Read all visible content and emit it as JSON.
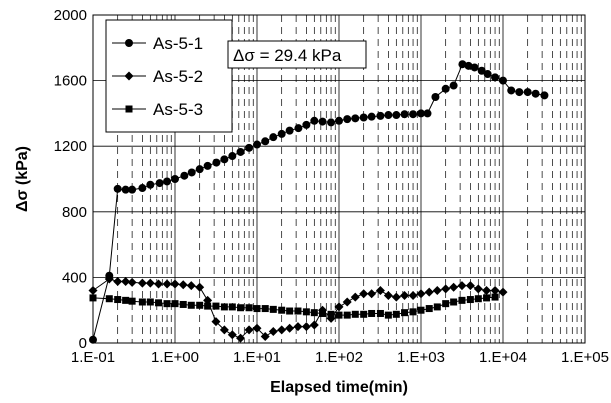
{
  "chart_data": {
    "type": "scatter",
    "title": "",
    "xlabel": "Elapsed time(min)",
    "ylabel": "Δσ (kPa)",
    "x_scale": "log",
    "xlim": [
      0.1,
      100000
    ],
    "ylim": [
      0,
      2000
    ],
    "x_tick_labels": [
      "1.E-01",
      "1.E+00",
      "1.E+01",
      "1.E+02",
      "1.E+03",
      "1.E+04",
      "1.E+05"
    ],
    "y_tick_labels": [
      "0",
      "400",
      "800",
      "1200",
      "1600",
      "2000"
    ],
    "grid": "major horizontal solid, log-minor vertical dashed",
    "legend_position": "top-left",
    "annotation": "Δσ = 29.4 kPa",
    "series": [
      {
        "name": "As-5-1",
        "marker": "circle",
        "x": [
          0.1,
          0.158,
          0.2,
          0.25,
          0.3,
          0.4,
          0.5,
          0.65,
          0.8,
          1.0,
          1.3,
          1.6,
          2.0,
          2.5,
          3.2,
          4.0,
          5.0,
          6.3,
          8.0,
          10,
          12.6,
          15.8,
          20,
          25,
          32,
          40,
          50,
          63,
          80,
          100,
          126,
          158,
          200,
          250,
          320,
          400,
          500,
          630,
          800,
          1000,
          1200,
          1500,
          2000,
          2500,
          3200,
          3800,
          4500,
          5500,
          6500,
          8000,
          10000,
          12600,
          15800,
          20000,
          25000,
          32000
        ],
        "y": [
          20,
          410,
          940,
          935,
          935,
          945,
          965,
          975,
          985,
          1000,
          1020,
          1040,
          1060,
          1080,
          1100,
          1120,
          1140,
          1165,
          1190,
          1210,
          1230,
          1255,
          1275,
          1295,
          1310,
          1330,
          1355,
          1350,
          1345,
          1355,
          1365,
          1370,
          1375,
          1380,
          1385,
          1390,
          1390,
          1395,
          1395,
          1400,
          1400,
          1500,
          1550,
          1570,
          1700,
          1690,
          1680,
          1660,
          1640,
          1620,
          1600,
          1540,
          1530,
          1530,
          1520,
          1510
        ]
      },
      {
        "name": "As-5-2",
        "marker": "diamond",
        "x": [
          0.1,
          0.158,
          0.2,
          0.25,
          0.3,
          0.4,
          0.5,
          0.63,
          0.8,
          1.0,
          1.26,
          1.58,
          2.0,
          2.5,
          3.16,
          4.0,
          5.0,
          6.3,
          8.0,
          10,
          12.6,
          15.8,
          20,
          25,
          31.6,
          40,
          50,
          63,
          80,
          100,
          126,
          158,
          200,
          250,
          320,
          400,
          500,
          630,
          800,
          1000,
          1260,
          1580,
          2000,
          2500,
          3160,
          4000,
          5000,
          6300,
          8000,
          10000
        ],
        "y": [
          320,
          390,
          375,
          375,
          370,
          365,
          365,
          360,
          360,
          360,
          355,
          350,
          340,
          260,
          130,
          80,
          50,
          30,
          80,
          90,
          40,
          70,
          80,
          90,
          100,
          100,
          110,
          200,
          150,
          220,
          250,
          280,
          300,
          300,
          320,
          290,
          280,
          290,
          290,
          300,
          310,
          320,
          330,
          340,
          350,
          350,
          330,
          320,
          320,
          310
        ]
      },
      {
        "name": "As-5-3",
        "marker": "square",
        "x": [
          0.1,
          0.158,
          0.2,
          0.25,
          0.3,
          0.4,
          0.5,
          0.63,
          0.8,
          1.0,
          1.26,
          1.58,
          2.0,
          2.5,
          3.16,
          4.0,
          5.0,
          6.3,
          8.0,
          10,
          12.6,
          15.8,
          20,
          25,
          31.6,
          40,
          50,
          63,
          80,
          100,
          126,
          158,
          200,
          250,
          320,
          400,
          500,
          630,
          800,
          1000,
          1260,
          1580,
          2000,
          2500,
          3160,
          4000,
          5000,
          6300,
          8000
        ],
        "y": [
          275,
          270,
          265,
          260,
          255,
          250,
          250,
          245,
          240,
          240,
          235,
          230,
          230,
          225,
          225,
          220,
          220,
          215,
          215,
          210,
          210,
          205,
          200,
          195,
          195,
          190,
          185,
          180,
          175,
          170,
          170,
          175,
          175,
          180,
          180,
          170,
          175,
          185,
          190,
          200,
          210,
          220,
          240,
          250,
          260,
          265,
          270,
          275,
          280
        ]
      }
    ]
  }
}
